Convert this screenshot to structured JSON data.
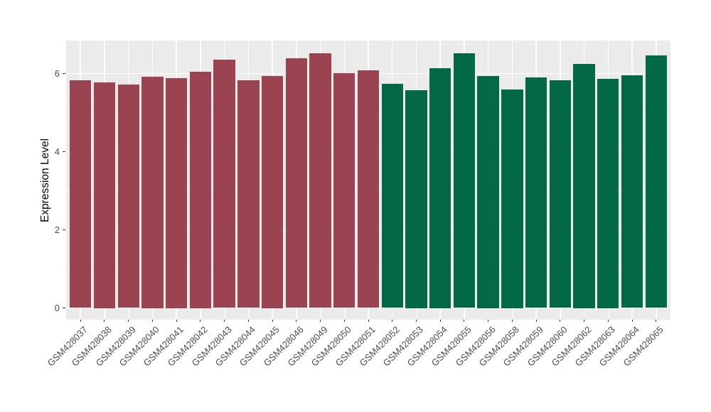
{
  "chart_data": {
    "type": "bar",
    "title": "",
    "xlabel": "",
    "ylabel": "Expression Level",
    "y_ticks": [
      0,
      2,
      4,
      6
    ],
    "y_tick_labels": [
      "0",
      "2",
      "4",
      "6"
    ],
    "y_minor_gridlines": [
      1,
      3,
      5
    ],
    "ylim": [
      0,
      6.85
    ],
    "grid": true,
    "legend": "none",
    "x_tick_rotation_deg": 45,
    "categories": [
      "GSM428037",
      "GSM428038",
      "GSM428039",
      "GSM428040",
      "GSM428041",
      "GSM428042",
      "GSM428043",
      "GSM428044",
      "GSM428045",
      "GSM428046",
      "GSM428049",
      "GSM428050",
      "GSM428051",
      "GSM428052",
      "GSM428053",
      "GSM428054",
      "GSM428055",
      "GSM428056",
      "GSM428058",
      "GSM428059",
      "GSM428060",
      "GSM428062",
      "GSM428063",
      "GSM428064",
      "GSM428065"
    ],
    "values": [
      5.84,
      5.77,
      5.73,
      5.92,
      5.88,
      6.05,
      6.35,
      5.84,
      5.94,
      6.4,
      6.53,
      6.01,
      6.08,
      5.74,
      5.58,
      6.14,
      6.53,
      5.94,
      5.6,
      5.91,
      5.84,
      6.25,
      5.87,
      5.95,
      6.46
    ],
    "bar_groups": [
      "group1",
      "group1",
      "group1",
      "group1",
      "group1",
      "group1",
      "group1",
      "group1",
      "group1",
      "group1",
      "group1",
      "group1",
      "group1",
      "group2",
      "group2",
      "group2",
      "group2",
      "group2",
      "group2",
      "group2",
      "group2",
      "group2",
      "group2",
      "group2",
      "group2"
    ],
    "group_colors": {
      "group1": "#9A4452",
      "group2": "#026846"
    }
  },
  "colors": {
    "page_background": "#FFFFFF",
    "panel_background": "#EBEBEB",
    "gridline_major": "#FFFFFF",
    "gridline_minor": "#F7F7F7",
    "tick_mark": "#333333",
    "axis_text": "#4D4D4D",
    "axis_title": "#000000"
  }
}
